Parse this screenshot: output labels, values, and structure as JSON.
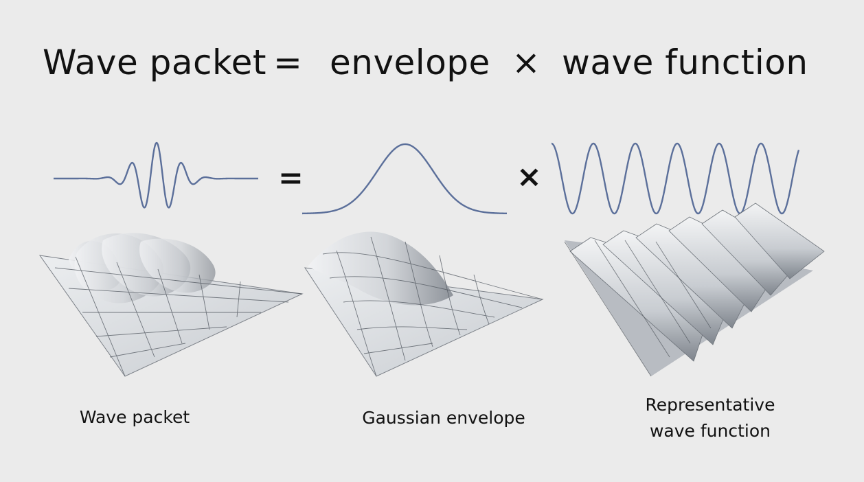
{
  "equation": {
    "lhs": "Wave packet",
    "equals": "=",
    "term1": "envelope",
    "times": "×",
    "term2": "wave function"
  },
  "operators_row": {
    "equals": "=",
    "times": "×"
  },
  "captions": {
    "wave_packet": "Wave packet",
    "gaussian_envelope": "Gaussian envelope",
    "representative_line1": "Representative",
    "representative_line2": "wave function"
  },
  "colors": {
    "background": "#ebebeb",
    "curve": "#5b6f9a",
    "surface_light": "#dfe1e4",
    "surface_dark": "#9a9fa6",
    "grid": "#555b63"
  }
}
